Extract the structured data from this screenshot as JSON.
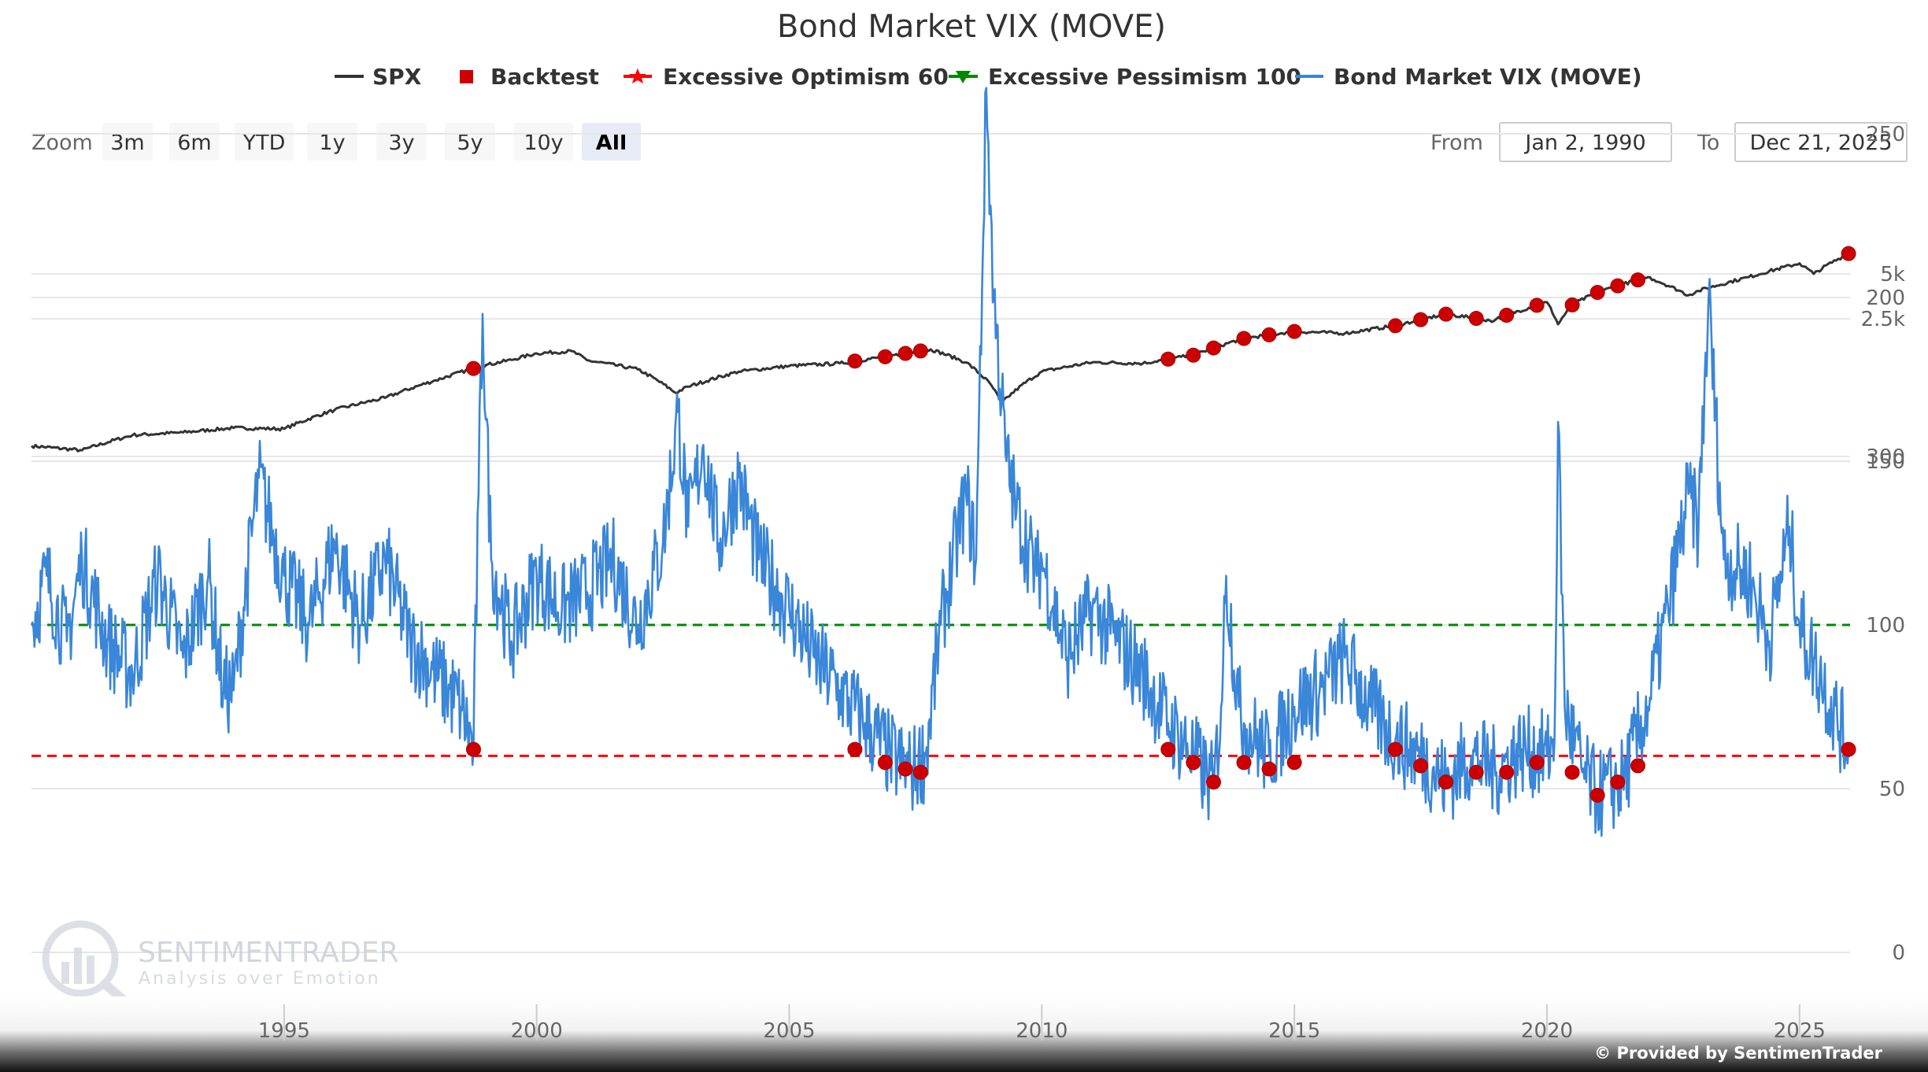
{
  "chart_data": {
    "type": "line",
    "title": "Bond Market VIX (MOVE)",
    "legend": {
      "placement": "top-center",
      "items": [
        {
          "name": "SPX",
          "color": "#333333",
          "symbol": "line"
        },
        {
          "name": "Backtest",
          "color": "#cc0000",
          "symbol": "square"
        },
        {
          "name": "Excessive Optimism 60",
          "color": "#ff0000",
          "symbol": "line-star"
        },
        {
          "name": "Excessive Pessimism 100",
          "color": "#008800",
          "symbol": "line-triangle"
        },
        {
          "name": "Bond Market VIX (MOVE)",
          "color": "#3a86d8",
          "symbol": "line"
        }
      ]
    },
    "range_selector": {
      "zoom_label": "Zoom",
      "buttons": [
        "3m",
        "6m",
        "YTD",
        "1y",
        "3y",
        "5y",
        "10y",
        "All"
      ],
      "selected": "All",
      "from_label": "From",
      "from_value": "Jan 2, 1990",
      "to_label": "To",
      "to_value": "Dec 21, 2025"
    },
    "x_axis": {
      "range": [
        1990.0,
        2026.0
      ],
      "ticks": [
        1995,
        2000,
        2005,
        2010,
        2015,
        2020,
        2025
      ],
      "tick_labels": [
        "1995",
        "2000",
        "2005",
        "2010",
        "2015",
        "2020",
        "2025"
      ]
    },
    "upper_panel": {
      "y_axis": {
        "scale": "log",
        "tick_labels": [
          "300",
          "2.5k",
          "5k"
        ],
        "tick_values": [
          300,
          2500,
          5000
        ]
      },
      "series": [
        {
          "name": "SPX",
          "color": "#333333",
          "points": [
            [
              1990.0,
              353
            ],
            [
              1991.0,
              330
            ],
            [
              1992.0,
              417
            ],
            [
              1993.0,
              435
            ],
            [
              1994.0,
              466
            ],
            [
              1995.0,
              459
            ],
            [
              1996.0,
              615
            ],
            [
              1997.0,
              740
            ],
            [
              1998.0,
              970
            ],
            [
              1999.0,
              1229
            ],
            [
              1999.5,
              1330
            ],
            [
              2000.0,
              1469
            ],
            [
              2000.7,
              1520
            ],
            [
              2001.0,
              1320
            ],
            [
              2002.0,
              1150
            ],
            [
              2002.75,
              800
            ],
            [
              2003.0,
              880
            ],
            [
              2004.0,
              1110
            ],
            [
              2005.0,
              1210
            ],
            [
              2006.0,
              1260
            ],
            [
              2007.0,
              1410
            ],
            [
              2007.8,
              1565
            ],
            [
              2008.5,
              1280
            ],
            [
              2009.0,
              900
            ],
            [
              2009.2,
              680
            ],
            [
              2010.0,
              1110
            ],
            [
              2011.0,
              1280
            ],
            [
              2012.0,
              1260
            ],
            [
              2013.0,
              1430
            ],
            [
              2014.0,
              1850
            ],
            [
              2015.0,
              2060
            ],
            [
              2016.0,
              2000
            ],
            [
              2017.0,
              2250
            ],
            [
              2018.0,
              2690
            ],
            [
              2018.95,
              2420
            ],
            [
              2019.0,
              2500
            ],
            [
              2020.0,
              3230
            ],
            [
              2020.22,
              2300
            ],
            [
              2020.5,
              3100
            ],
            [
              2021.0,
              3760
            ],
            [
              2022.0,
              4760
            ],
            [
              2022.8,
              3600
            ],
            [
              2023.0,
              3850
            ],
            [
              2024.0,
              4770
            ],
            [
              2025.0,
              5880
            ],
            [
              2025.28,
              5000
            ],
            [
              2025.97,
              6840
            ]
          ]
        }
      ],
      "backtest_signals": [
        1998.75,
        2006.3,
        2006.9,
        2007.3,
        2007.6,
        2012.5,
        2013.0,
        2013.4,
        2014.0,
        2014.5,
        2015.0,
        2017.0,
        2017.5,
        2018.0,
        2018.6,
        2019.2,
        2019.8,
        2020.5,
        2021.0,
        2021.4,
        2021.8,
        2025.97
      ]
    },
    "lower_panel": {
      "y_axis": {
        "range": [
          0,
          250
        ],
        "ticks": [
          0,
          50,
          100,
          150,
          200,
          250
        ],
        "tick_labels": [
          "0",
          "50",
          "100",
          "150",
          "200",
          "250"
        ]
      },
      "thresholds": [
        {
          "name": "Excessive Pessimism 100",
          "value": 100,
          "color": "#008800",
          "dash": true
        },
        {
          "name": "Excessive Optimism 60",
          "value": 60,
          "color": "#ff0000",
          "dash": true
        }
      ],
      "series": [
        {
          "name": "Bond Market VIX (MOVE)",
          "color": "#3a86d8",
          "points": [
            [
              1990.0,
              100
            ],
            [
              1990.3,
              115
            ],
            [
              1990.7,
              95
            ],
            [
              1991.0,
              120
            ],
            [
              1991.5,
              95
            ],
            [
              1992.0,
              85
            ],
            [
              1992.5,
              115
            ],
            [
              1993.0,
              90
            ],
            [
              1993.5,
              115
            ],
            [
              1993.8,
              80
            ],
            [
              1994.0,
              80
            ],
            [
              1994.5,
              145
            ],
            [
              1995.0,
              115
            ],
            [
              1995.5,
              100
            ],
            [
              1996.0,
              125
            ],
            [
              1996.5,
              100
            ],
            [
              1997.0,
              120
            ],
            [
              1997.5,
              95
            ],
            [
              1998.0,
              85
            ],
            [
              1998.5,
              75
            ],
            [
              1998.75,
              62
            ],
            [
              1998.85,
              140
            ],
            [
              1998.93,
              195
            ],
            [
              1999.1,
              120
            ],
            [
              1999.5,
              95
            ],
            [
              2000.0,
              115
            ],
            [
              2000.5,
              105
            ],
            [
              2001.0,
              110
            ],
            [
              2001.5,
              120
            ],
            [
              2002.0,
              100
            ],
            [
              2002.5,
              125
            ],
            [
              2002.8,
              165
            ],
            [
              2003.0,
              130
            ],
            [
              2003.3,
              155
            ],
            [
              2003.6,
              125
            ],
            [
              2004.0,
              145
            ],
            [
              2004.4,
              120
            ],
            [
              2004.8,
              110
            ],
            [
              2005.0,
              105
            ],
            [
              2005.5,
              90
            ],
            [
              2006.0,
              80
            ],
            [
              2006.5,
              70
            ],
            [
              2007.0,
              60
            ],
            [
              2007.4,
              55
            ],
            [
              2007.7,
              60
            ],
            [
              2008.0,
              100
            ],
            [
              2008.5,
              140
            ],
            [
              2008.7,
              120
            ],
            [
              2008.9,
              264
            ],
            [
              2009.05,
              200
            ],
            [
              2009.3,
              150
            ],
            [
              2009.5,
              135
            ],
            [
              2009.9,
              115
            ],
            [
              2010.0,
              120
            ],
            [
              2010.5,
              90
            ],
            [
              2011.0,
              105
            ],
            [
              2011.5,
              95
            ],
            [
              2012.0,
              85
            ],
            [
              2012.5,
              70
            ],
            [
              2013.0,
              60
            ],
            [
              2013.4,
              50
            ],
            [
              2013.55,
              75
            ],
            [
              2013.65,
              115
            ],
            [
              2013.9,
              75
            ],
            [
              2014.0,
              70
            ],
            [
              2014.5,
              60
            ],
            [
              2015.0,
              75
            ],
            [
              2015.5,
              80
            ],
            [
              2016.0,
              90
            ],
            [
              2016.5,
              75
            ],
            [
              2017.0,
              65
            ],
            [
              2017.5,
              60
            ],
            [
              2018.0,
              52
            ],
            [
              2018.5,
              60
            ],
            [
              2019.0,
              55
            ],
            [
              2019.5,
              62
            ],
            [
              2020.0,
              60
            ],
            [
              2020.15,
              65
            ],
            [
              2020.22,
              162
            ],
            [
              2020.35,
              75
            ],
            [
              2020.7,
              55
            ],
            [
              2021.0,
              48
            ],
            [
              2021.5,
              52
            ],
            [
              2022.0,
              75
            ],
            [
              2022.4,
              105
            ],
            [
              2022.8,
              140
            ],
            [
              2023.0,
              130
            ],
            [
              2023.2,
              200
            ],
            [
              2023.5,
              120
            ],
            [
              2024.0,
              115
            ],
            [
              2024.4,
              95
            ],
            [
              2024.8,
              130
            ],
            [
              2025.0,
              100
            ],
            [
              2025.4,
              85
            ],
            [
              2025.97,
              62
            ]
          ]
        }
      ],
      "backtest_signals": [
        [
          1998.75,
          62
        ],
        [
          2006.3,
          62
        ],
        [
          2006.9,
          58
        ],
        [
          2007.3,
          56
        ],
        [
          2007.6,
          55
        ],
        [
          2012.5,
          62
        ],
        [
          2013.0,
          58
        ],
        [
          2013.4,
          52
        ],
        [
          2014.0,
          58
        ],
        [
          2014.5,
          56
        ],
        [
          2015.0,
          58
        ],
        [
          2017.0,
          62
        ],
        [
          2017.5,
          57
        ],
        [
          2018.0,
          52
        ],
        [
          2018.6,
          55
        ],
        [
          2019.2,
          55
        ],
        [
          2019.8,
          58
        ],
        [
          2020.5,
          55
        ],
        [
          2021.0,
          48
        ],
        [
          2021.4,
          52
        ],
        [
          2021.8,
          57
        ],
        [
          2025.97,
          62
        ]
      ]
    }
  },
  "watermark": {
    "brand": "SENTIMENTRADER",
    "tagline": "Analysis over Emotion"
  },
  "credit": "© Provided by SentimenTrader"
}
